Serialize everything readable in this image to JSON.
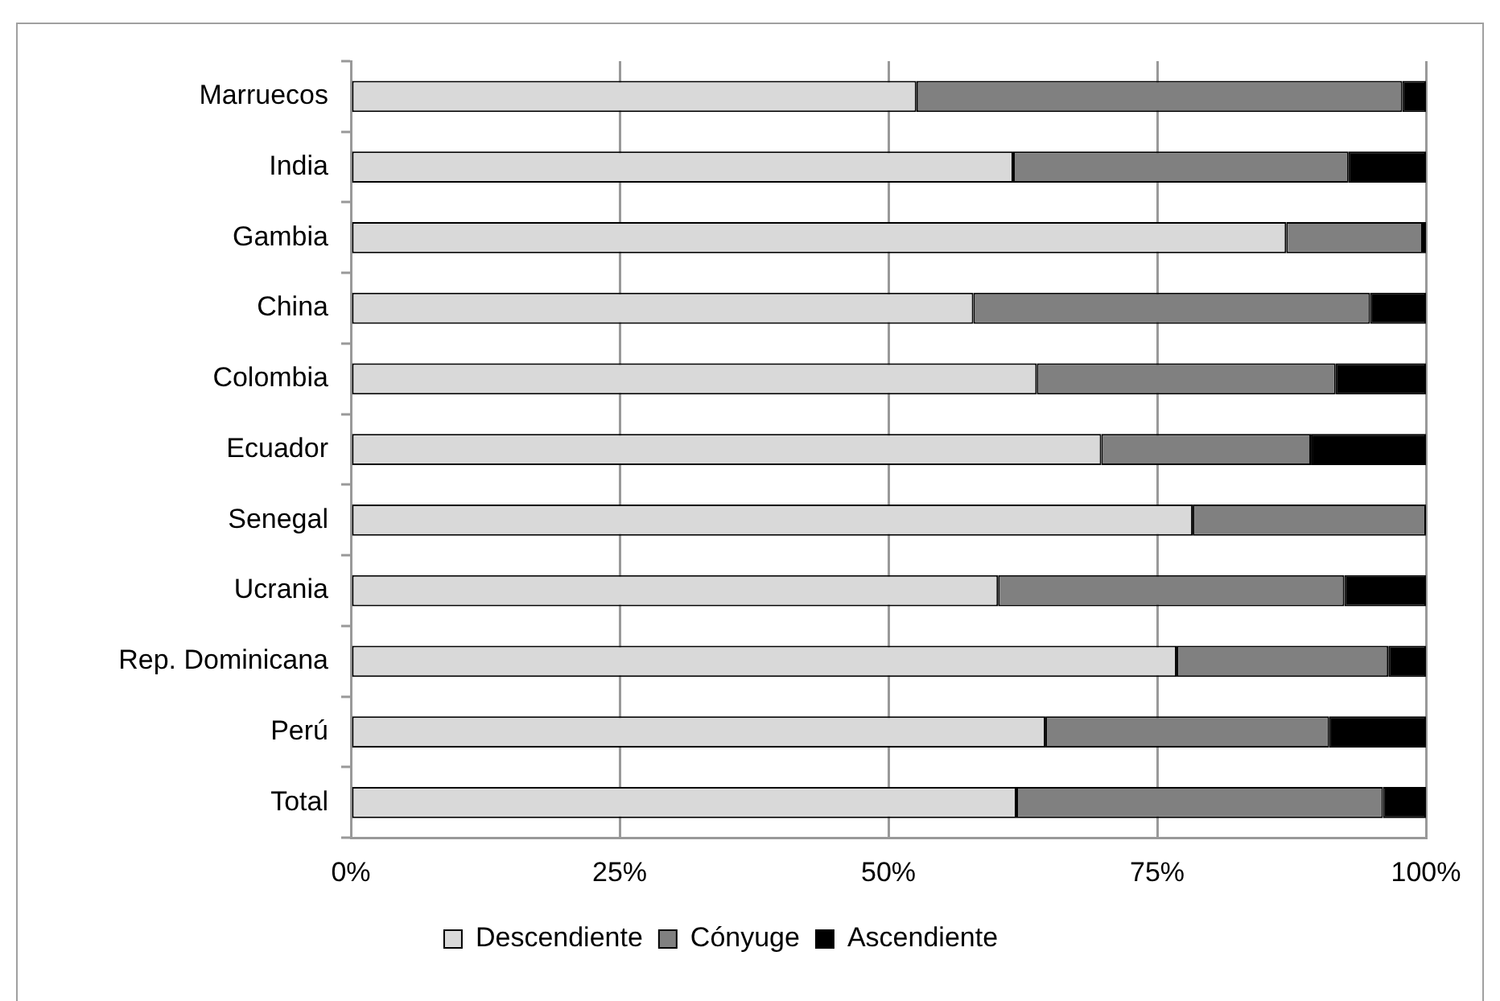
{
  "chart_data": {
    "type": "bar",
    "orientation": "horizontal",
    "stacked": true,
    "categories": [
      "Marruecos",
      "India",
      "Gambia",
      "China",
      "Colombia",
      "Ecuador",
      "Senegal",
      "Ucrania",
      "Rep. Dominicana",
      "Perú",
      "Total"
    ],
    "series": [
      {
        "name": "Descendiente",
        "color": "#d9d9d9",
        "values": [
          52.6,
          61.6,
          87.0,
          57.9,
          63.8,
          69.8,
          78.3,
          60.2,
          76.8,
          64.6,
          61.9
        ]
      },
      {
        "name": "Cónyuge",
        "color": "#808080",
        "values": [
          45.2,
          31.2,
          12.7,
          36.9,
          27.8,
          19.5,
          21.7,
          32.2,
          19.7,
          26.4,
          34.1
        ]
      },
      {
        "name": "Ascendiente",
        "color": "#000000",
        "values": [
          2.2,
          7.2,
          0.3,
          5.2,
          8.4,
          10.7,
          0,
          7.6,
          3.5,
          9.0,
          4.0
        ]
      }
    ],
    "xlim": [
      0,
      100
    ],
    "xticks": [
      {
        "value": 0,
        "label": "0%"
      },
      {
        "value": 25,
        "label": "25%"
      },
      {
        "value": 50,
        "label": "50%"
      },
      {
        "value": 75,
        "label": "75%"
      },
      {
        "value": 100,
        "label": "100%"
      }
    ],
    "grid": "x",
    "legend": "bottom"
  }
}
